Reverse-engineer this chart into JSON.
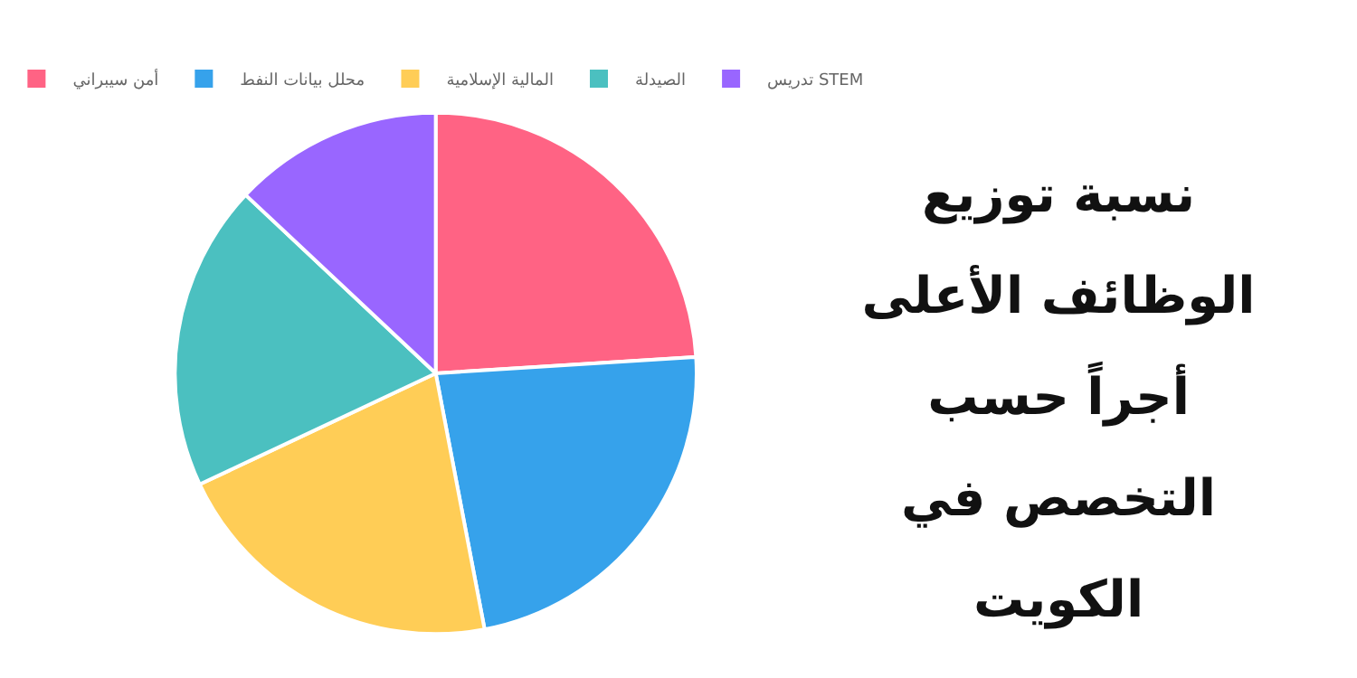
{
  "chart_data": {
    "type": "pie",
    "title": "نسبة توزيع الوظائف الأعلى أجراً حسب التخصص في الكويت",
    "categories": [
      "أمن سيبراني",
      "محلل بيانات النفط",
      "المالية الإسلامية",
      "الصيدلة",
      "تدريس STEM"
    ],
    "values": [
      24,
      23,
      21,
      19,
      13
    ],
    "colors": [
      "#ff6384",
      "#36a2eb",
      "#ffcd56",
      "#4bc0c0",
      "#9966ff"
    ],
    "legend": "top"
  }
}
